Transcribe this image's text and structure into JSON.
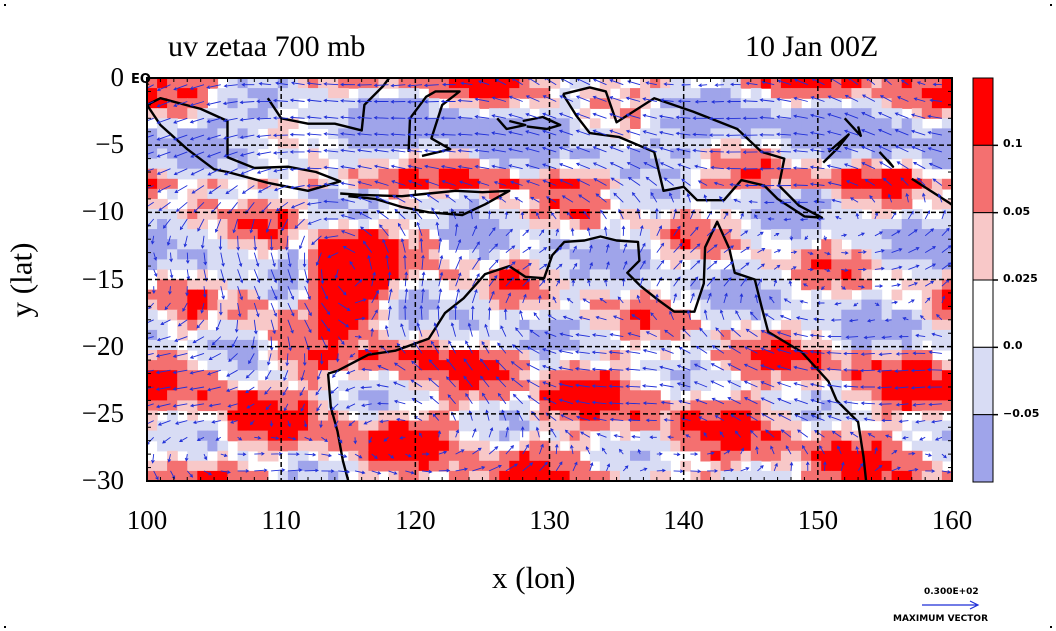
{
  "title_left": "uv zetaa 700 mb",
  "title_right": "10 Jan 00Z",
  "equator_label": "EQ",
  "vector_key": {
    "magnitude": "0.300E+02",
    "caption": "MAXIMUM VECTOR"
  },
  "colors": {
    "strong_pos": "#ff0000",
    "mid_pos": "#f47070",
    "weak_pos": "#f8c8c8",
    "neutral": "#ffffff",
    "weak_neg": "#d8dcf4",
    "strong_neg": "#9fa4ea",
    "vectors": "#1f2fd8",
    "coast": "#000000"
  },
  "chart_data": {
    "type": "heatmap",
    "variable": "zetaa",
    "level": "700 mb",
    "valid_time": "10 Jan 00Z",
    "xlabel": "x (lon)",
    "ylabel": "y (lat)",
    "xlim": [
      100,
      160
    ],
    "ylim": [
      -30,
      0
    ],
    "x_ticks": [
      "100",
      "110",
      "120",
      "130",
      "140",
      "150",
      "160"
    ],
    "y_ticks": [
      "0",
      "−5",
      "−10",
      "−15",
      "−20",
      "−25",
      "−30"
    ],
    "grid": true,
    "colorbar": {
      "labels": [
        "0.1",
        "0.05",
        "0.025",
        "0.0",
        "−0.05"
      ],
      "bins": [
        {
          "range": "> 0.1",
          "color": "#ff0000"
        },
        {
          "range": "0.05 – 0.1",
          "color": "#f47070"
        },
        {
          "range": "0.025 – 0.05",
          "color": "#f8c8c8"
        },
        {
          "range": "0.0 – 0.025",
          "color": "#ffffff"
        },
        {
          "range": "−0.05 – 0.0",
          "color": "#d8dcf4"
        },
        {
          "range": "< −0.05",
          "color": "#9fa4ea"
        }
      ]
    },
    "features": [
      {
        "name": "cyclonic vortex",
        "lon": 115,
        "lat": -15,
        "sign": "positive"
      }
    ]
  }
}
